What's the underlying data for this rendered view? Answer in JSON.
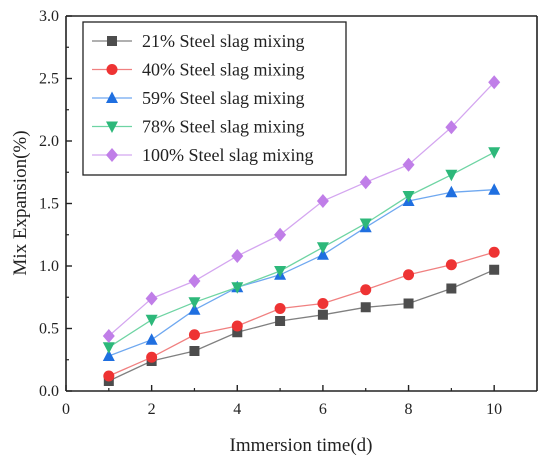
{
  "chart_data": {
    "type": "line",
    "xlabel": "Immersion time(d)",
    "ylabel": "Mix Expansion(%)",
    "xlim": [
      0,
      11
    ],
    "ylim": [
      0,
      3.0
    ],
    "xticks": [
      "0",
      "2",
      "4",
      "6",
      "8",
      "10"
    ],
    "yticks": [
      "0.0",
      "0.5",
      "1.0",
      "1.5",
      "2.0",
      "2.5",
      "3.0"
    ],
    "grid": false,
    "legend_position": "top-left",
    "x": [
      1,
      2,
      3,
      4,
      5,
      6,
      7,
      8,
      9,
      10
    ],
    "series": [
      {
        "name": "21% Steel slag mixing",
        "marker": "square",
        "color": "#4d4d4d",
        "line_color": "#808080",
        "values": [
          0.08,
          0.24,
          0.32,
          0.47,
          0.56,
          0.61,
          0.67,
          0.7,
          0.82,
          0.97
        ]
      },
      {
        "name": "40% Steel slag mixing",
        "marker": "circle",
        "color": "#ee3333",
        "line_color": "#f08080",
        "values": [
          0.12,
          0.27,
          0.45,
          0.52,
          0.66,
          0.7,
          0.81,
          0.93,
          1.01,
          1.11
        ]
      },
      {
        "name": "59% Steel slag mixing",
        "marker": "triangle-up",
        "color": "#1f6fe0",
        "line_color": "#6fa8f0",
        "values": [
          0.28,
          0.41,
          0.65,
          0.83,
          0.93,
          1.09,
          1.31,
          1.52,
          1.59,
          1.61
        ]
      },
      {
        "name": "78% Steel slag mixing",
        "marker": "triangle-down",
        "color": "#2db87a",
        "line_color": "#6ed4a3",
        "values": [
          0.35,
          0.57,
          0.71,
          0.83,
          0.96,
          1.15,
          1.34,
          1.56,
          1.73,
          1.91
        ]
      },
      {
        "name": "100% Steel slag mixing",
        "marker": "diamond",
        "color": "#c07ee8",
        "line_color": "#d4a6f0",
        "values": [
          0.44,
          0.74,
          0.88,
          1.08,
          1.25,
          1.52,
          1.67,
          1.81,
          2.11,
          2.47
        ]
      }
    ]
  }
}
